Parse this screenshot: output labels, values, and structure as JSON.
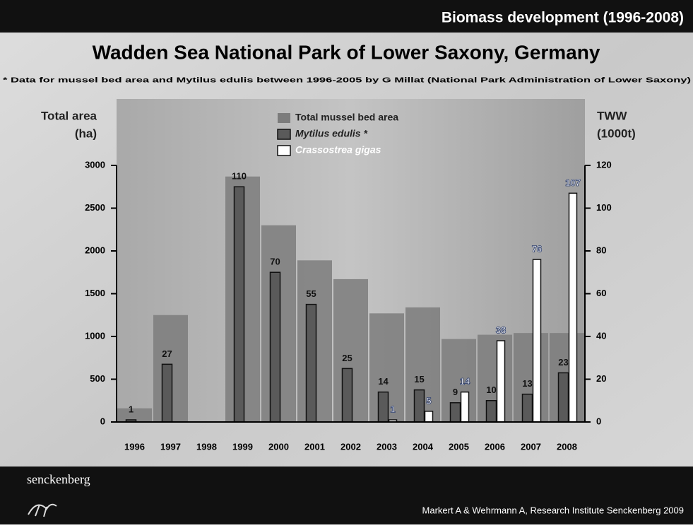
{
  "slide": {
    "banner": "Biomass development (1996-2008)",
    "logo_text": "senckenberg",
    "credit": "Markert A & Wehrmann A, Research Institute Senckenberg 2009"
  },
  "chart_data": {
    "type": "bar",
    "title": "Wadden Sea National Park of Lower Saxony, Germany",
    "subtitle": "* Data for mussel bed area and Mytilus edulis between 1996-2005 by G Millat (National Park Administration of Lower Saxony)",
    "ylabel": [
      "Total area",
      "(ha)"
    ],
    "y2label": [
      "TWW",
      "(1000t)"
    ],
    "categories": [
      "1996",
      "1997",
      "1998",
      "1999",
      "2000",
      "2001",
      "2002",
      "2003",
      "2004",
      "2005",
      "2006",
      "2007",
      "2008"
    ],
    "series": [
      {
        "name": "Total mussel bed area",
        "color": "#7c7c7c",
        "axis": "y",
        "values": [
          160,
          1250,
          null,
          2870,
          2300,
          1890,
          1670,
          1270,
          1340,
          970,
          1020,
          1040,
          1040
        ]
      },
      {
        "name": "Mytilus edulis *",
        "color": "#5a5a5a",
        "axis": "y2",
        "values": [
          1,
          27,
          null,
          110,
          70,
          55,
          25,
          14,
          15,
          9,
          10,
          13,
          23
        ]
      },
      {
        "name": "Crassostrea gigas",
        "color": "#ffffff",
        "axis": "y2",
        "values": [
          null,
          null,
          null,
          null,
          null,
          null,
          null,
          1,
          5,
          14,
          38,
          76,
          107
        ]
      }
    ],
    "ylim": [
      0,
      3000
    ],
    "yticks": [
      0,
      500,
      1000,
      1500,
      2000,
      2500,
      3000
    ],
    "y2lim": [
      0,
      120
    ],
    "y2ticks": [
      0,
      20,
      40,
      60,
      80,
      100,
      120
    ]
  }
}
